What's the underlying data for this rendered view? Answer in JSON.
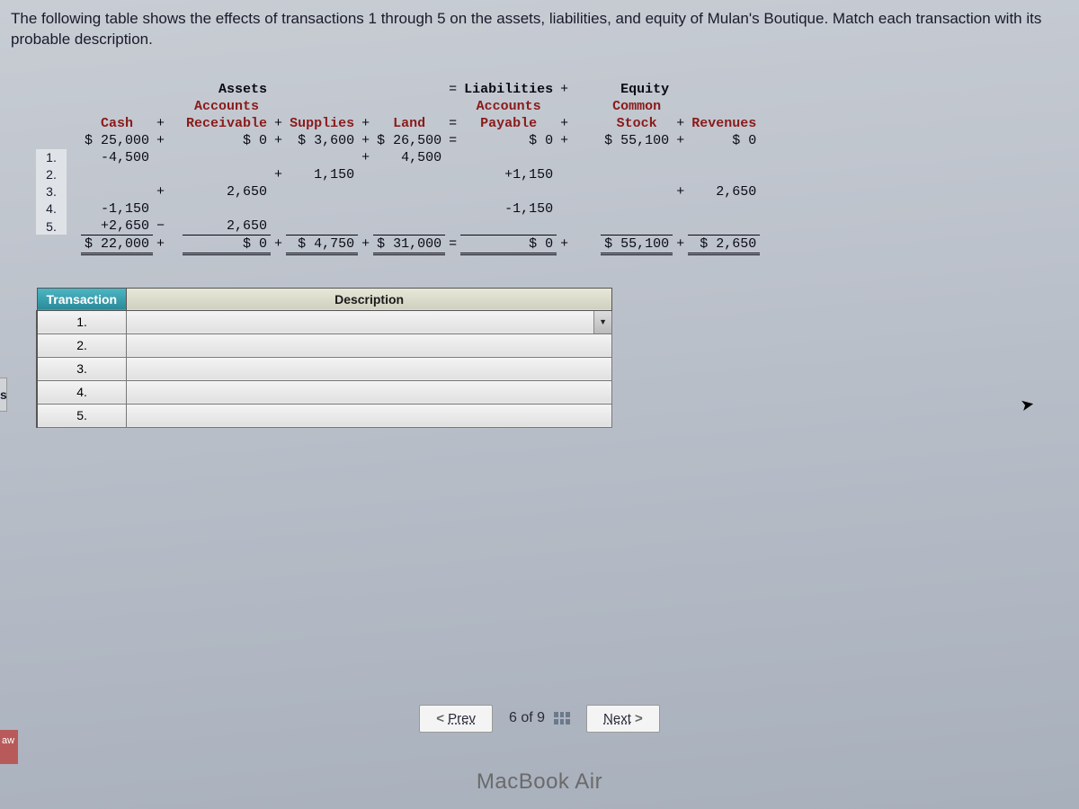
{
  "question": "The following table shows the effects of transactions 1 through 5 on the assets, liabilities, and equity of Mulan's Boutique. Match each transaction with its probable description.",
  "headers": {
    "assets": "Assets",
    "liabilities": "Liabilities",
    "equity": "Equity",
    "cash": "Cash",
    "ar_top": "Accounts",
    "ar_bot": "Receivable",
    "supplies": "Supplies",
    "land": "Land",
    "ap_top": "Accounts",
    "ap_bot": "Payable",
    "cs_top": "Common",
    "cs_bot": "Stock",
    "revenues": "Revenues"
  },
  "rows": {
    "start": {
      "cash": "$ 25,000",
      "ar": "$ 0",
      "supplies": "$ 3,600",
      "land": "$ 26,500",
      "payable": "$ 0",
      "stock": "$ 55,100",
      "rev": "$ 0"
    },
    "r1": {
      "label": "1.",
      "cash": "-4,500",
      "land": "4,500"
    },
    "r2": {
      "label": "2.",
      "supplies": "1,150",
      "payable": "+1,150"
    },
    "r3": {
      "label": "3.",
      "ar": "2,650",
      "rev": "2,650"
    },
    "r4": {
      "label": "4.",
      "cash": "-1,150",
      "payable": "-1,150"
    },
    "r5": {
      "label": "5.",
      "cash": "+2,650",
      "ar": "2,650"
    },
    "total": {
      "cash": "$ 22,000",
      "ar": "$ 0",
      "supplies": "$ 4,750",
      "land": "$ 31,000",
      "payable": "$ 0",
      "stock": "$ 55,100",
      "rev": "$ 2,650"
    }
  },
  "ops": {
    "plus": "+",
    "minus": "−",
    "eq": "="
  },
  "match": {
    "head_txn": "Transaction",
    "head_desc": "Description",
    "items": [
      "1.",
      "2.",
      "3.",
      "4.",
      "5."
    ]
  },
  "nav": {
    "prev": "Prev",
    "next": "Next",
    "page": "6 of 9"
  },
  "mac": "MacBook Air",
  "lefttab": "s",
  "lefttab2": "aw"
}
